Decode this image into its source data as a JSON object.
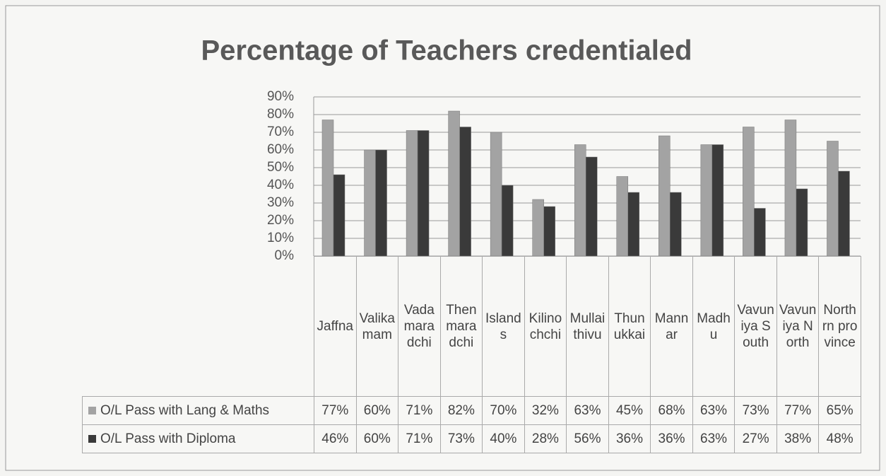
{
  "chart_data": {
    "type": "bar",
    "title": "Percentage of Teachers credentialed",
    "categories": [
      "Jaffna",
      "Valikamam",
      "Vadamaradchi",
      "Thenmaradchi",
      "Islands",
      "Kilinochchi",
      "Mullaithivu",
      "Thunukkai",
      "Mannar",
      "Madhu",
      "Vavuniya South",
      "Vavuniya North",
      "Northrn province"
    ],
    "series": [
      {
        "name": "O/L Pass with Lang & Maths",
        "color": "#a3a3a3",
        "values": [
          77,
          60,
          71,
          82,
          70,
          32,
          63,
          45,
          68,
          63,
          73,
          77,
          65
        ],
        "value_labels": [
          "77%",
          "60%",
          "71%",
          "82%",
          "70%",
          "32%",
          "63%",
          "45%",
          "68%",
          "63%",
          "73%",
          "77%",
          "65%"
        ]
      },
      {
        "name": "O/L Pass with Diploma",
        "color": "#3a3a3a",
        "values": [
          46,
          60,
          71,
          73,
          40,
          28,
          56,
          36,
          36,
          63,
          27,
          38,
          48
        ],
        "value_labels": [
          "46%",
          "60%",
          "71%",
          "73%",
          "40%",
          "28%",
          "56%",
          "36%",
          "36%",
          "63%",
          "27%",
          "38%",
          "48%"
        ]
      }
    ],
    "ylim": [
      0,
      90
    ],
    "yticks": [
      {
        "value": 0,
        "label": "0%"
      },
      {
        "value": 10,
        "label": "10%"
      },
      {
        "value": 20,
        "label": "20%"
      },
      {
        "value": 30,
        "label": "30%"
      },
      {
        "value": 40,
        "label": "40%"
      },
      {
        "value": 50,
        "label": "50%"
      },
      {
        "value": 60,
        "label": "60%"
      },
      {
        "value": 70,
        "label": "70%"
      },
      {
        "value": 80,
        "label": "80%"
      },
      {
        "value": 90,
        "label": "90%"
      }
    ],
    "grid": true
  }
}
